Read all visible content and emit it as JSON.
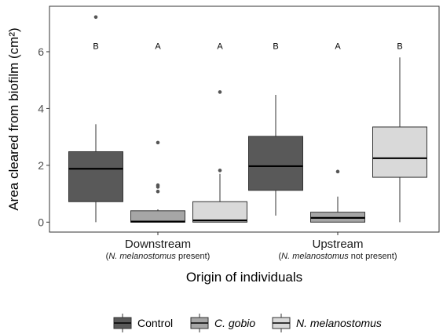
{
  "chart_data": {
    "type": "boxplot",
    "ylabel": "Area cleared from biofilm (cm²)",
    "xlabel": "Origin of individuals",
    "ylim": [
      -0.35,
      7.6
    ],
    "yticks": [
      0,
      2,
      4,
      6
    ],
    "grid": false,
    "legend_position": "bottom",
    "groups": [
      {
        "label": "Downstream",
        "sublabel_parts": [
          {
            "text": "(",
            "italic": false
          },
          {
            "text": "N. melanostomus",
            "italic": true
          },
          {
            "text": " present)",
            "italic": false
          }
        ]
      },
      {
        "label": "Upstream",
        "sublabel_parts": [
          {
            "text": "(",
            "italic": false
          },
          {
            "text": "N. melanostomus",
            "italic": true
          },
          {
            "text": " not present)",
            "italic": false
          }
        ]
      }
    ],
    "series": [
      {
        "name": "Control",
        "italic": false,
        "color": "#595959"
      },
      {
        "name": "C. gobio",
        "italic": true,
        "color": "#a6a6a6"
      },
      {
        "name": "N. melanostomus",
        "italic": true,
        "color": "#d9d9d9"
      }
    ],
    "boxes": [
      {
        "group": 0,
        "series": 0,
        "min": 0.0,
        "q1": 0.72,
        "median": 1.88,
        "q3": 2.48,
        "max": 3.45,
        "outliers": [
          7.22
        ],
        "letter": "B"
      },
      {
        "group": 0,
        "series": 1,
        "min": 0.0,
        "q1": 0.0,
        "median": 0.02,
        "q3": 0.4,
        "max": 0.45,
        "outliers": [
          2.8,
          1.3,
          1.24,
          1.08
        ],
        "letter": "A"
      },
      {
        "group": 0,
        "series": 2,
        "min": 0.0,
        "q1": 0.0,
        "median": 0.06,
        "q3": 0.72,
        "max": 1.7,
        "outliers": [
          4.58,
          1.82
        ],
        "letter": "A"
      },
      {
        "group": 1,
        "series": 0,
        "min": 0.23,
        "q1": 1.12,
        "median": 1.97,
        "q3": 3.02,
        "max": 4.48,
        "outliers": [],
        "letter": "B"
      },
      {
        "group": 1,
        "series": 1,
        "min": 0.0,
        "q1": 0.0,
        "median": 0.15,
        "q3": 0.35,
        "max": 0.9,
        "outliers": [
          1.78
        ],
        "letter": "A"
      },
      {
        "group": 1,
        "series": 2,
        "min": 0.0,
        "q1": 1.58,
        "median": 2.25,
        "q3": 3.35,
        "max": 5.8,
        "outliers": [],
        "letter": "B"
      }
    ],
    "letter_y": 6.2
  }
}
